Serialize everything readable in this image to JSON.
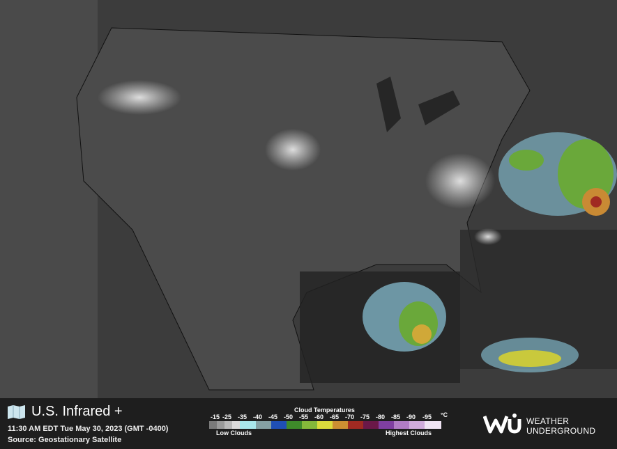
{
  "header": {
    "title": "U.S. Infrared +",
    "timestamp": "11:30 AM EDT Tue May 30, 2023 (GMT -0400)",
    "source": "Source: Geostationary Satellite"
  },
  "legend": {
    "title": "Cloud Temperatures",
    "unit": "°C",
    "ticks": [
      "-15",
      "-25",
      "-35",
      "-40",
      "-45",
      "-50",
      "-55",
      "-60",
      "-65",
      "-70",
      "-75",
      "-80",
      "-85",
      "-90",
      "-95"
    ],
    "colors": [
      "#7a7a7a",
      "#9a9a9a",
      "#bababa",
      "#dcdcdc",
      "#a9e6ea",
      "#85a0a3",
      "#1f4fb5",
      "#3e8a2a",
      "#84b83a",
      "#dcdc3c",
      "#cc8f32",
      "#a02a22",
      "#6a1848",
      "#7f3fa0",
      "#b07cc4",
      "#d0acdc",
      "#f0e4f4"
    ],
    "low_label": "Low Clouds",
    "high_label": "Highest Clouds"
  },
  "brand": {
    "name_line1": "WEATHER",
    "name_line2": "UNDERGROUND"
  }
}
